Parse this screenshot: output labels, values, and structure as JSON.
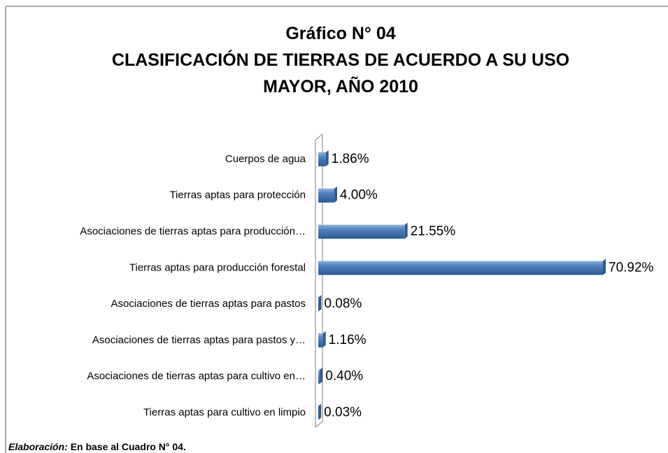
{
  "chart_data": {
    "type": "bar",
    "title": [
      "Gráfico N° 04",
      "CLASIFICACIÓN DE TIERRAS DE ACUERDO A SU USO",
      "MAYOR, AÑO 2010"
    ],
    "categories": [
      "Cuerpos de agua",
      "Tierras aptas para protección",
      "Asociaciones de tierras aptas para producción…",
      "Tierras aptas para producción forestal",
      "Asociaciones de tierras aptas para pastos",
      "Asociaciones de tierras aptas para pastos y…",
      "Asociaciones de tierras aptas para cultivo en…",
      "Tierras aptas para cultivo en limpio"
    ],
    "values": [
      1.86,
      4.0,
      21.55,
      70.92,
      0.08,
      1.16,
      0.4,
      0.03
    ],
    "value_labels": [
      "1.86%",
      "4.00%",
      "21.55%",
      "70.92%",
      "0.08%",
      "1.16%",
      "0.40%",
      "0.03%"
    ],
    "color": "#4f81bd",
    "source_label": "Elaboración:",
    "source": "En base al Cuadro N° 04."
  }
}
